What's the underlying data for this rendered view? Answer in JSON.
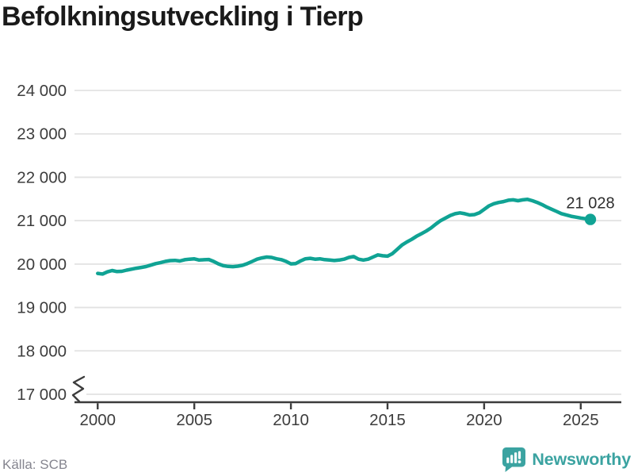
{
  "page": {
    "title": "Befolkningsutveckling i Tierp"
  },
  "footer": {
    "source": "Källa: SCB",
    "brand": "Newsworthy"
  },
  "colors": {
    "line": "#10a394",
    "dot": "#10a394",
    "grid": "#e2e2e2",
    "axis": "#3c3c3c",
    "tick_text": "#3d3d3d",
    "annotation_text": "#2e2e2e",
    "title_text": "#1a1a1a",
    "source_text": "#85858f",
    "brand_teal": "#3ba3a1"
  },
  "chart_data": {
    "type": "line",
    "title": "Befolkningsutveckling i Tierp",
    "xlabel": "",
    "ylabel": "",
    "grid": true,
    "legend_position": "none",
    "axis_break_at_bottom": true,
    "xlim": [
      1998.8,
      2027.1
    ],
    "ylim": [
      17000,
      24000
    ],
    "x_ticks": [
      {
        "value": 2000,
        "label": "2000"
      },
      {
        "value": 2005,
        "label": "2005"
      },
      {
        "value": 2010,
        "label": "2010"
      },
      {
        "value": 2015,
        "label": "2015"
      },
      {
        "value": 2020,
        "label": "2020"
      },
      {
        "value": 2025,
        "label": "2025"
      }
    ],
    "y_ticks": [
      {
        "value": 17000,
        "label": "17 000"
      },
      {
        "value": 18000,
        "label": "18 000"
      },
      {
        "value": 19000,
        "label": "19 000"
      },
      {
        "value": 20000,
        "label": "20 000"
      },
      {
        "value": 21000,
        "label": "21 000"
      },
      {
        "value": 22000,
        "label": "22 000"
      },
      {
        "value": 23000,
        "label": "23 000"
      },
      {
        "value": 24000,
        "label": "24 000"
      }
    ],
    "end_annotation": {
      "label": "21 028",
      "x": 2025.5,
      "y": 21028
    },
    "series": [
      {
        "name": "population",
        "color": "#10a394",
        "x_start": 2000.0,
        "x_step": 0.25,
        "values": [
          19786,
          19770,
          19820,
          19852,
          19828,
          19833,
          19860,
          19882,
          19905,
          19922,
          19942,
          19976,
          20010,
          20032,
          20062,
          20080,
          20086,
          20070,
          20100,
          20112,
          20120,
          20092,
          20100,
          20105,
          20062,
          20005,
          19962,
          19946,
          19940,
          19952,
          19972,
          20012,
          20062,
          20112,
          20142,
          20162,
          20152,
          20122,
          20102,
          20062,
          20005,
          20012,
          20072,
          20122,
          20132,
          20112,
          20122,
          20102,
          20092,
          20082,
          20092,
          20112,
          20152,
          20172,
          20112,
          20092,
          20112,
          20162,
          20212,
          20192,
          20182,
          20240,
          20340,
          20440,
          20510,
          20570,
          20640,
          20700,
          20760,
          20830,
          20920,
          21000,
          21060,
          21120,
          21160,
          21180,
          21160,
          21130,
          21140,
          21180,
          21260,
          21340,
          21390,
          21420,
          21440,
          21470,
          21480,
          21460,
          21480,
          21490,
          21460,
          21420,
          21370,
          21312,
          21262,
          21212,
          21162,
          21132,
          21102,
          21082,
          21062,
          21045,
          21028
        ]
      }
    ]
  }
}
